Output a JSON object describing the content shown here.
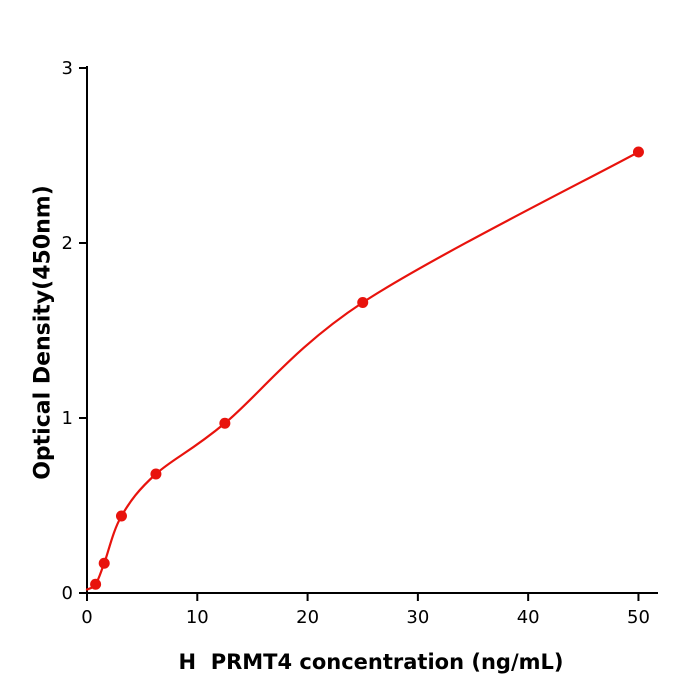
{
  "chart_data": {
    "type": "scatter",
    "title": "",
    "xlabel": "H  PRMT4 concentration (ng/mL)",
    "ylabel": "Optical Density(450nm)",
    "x": [
      0.78,
      1.56,
      3.125,
      6.25,
      12.5,
      25,
      50
    ],
    "y": [
      0.05,
      0.17,
      0.44,
      0.68,
      0.97,
      1.66,
      2.52
    ],
    "curve_start_x": 0,
    "curve_start_y": 0.02,
    "xlim": [
      0,
      51.5
    ],
    "ylim": [
      0,
      3
    ],
    "xticks": [
      0,
      10,
      20,
      30,
      40,
      50
    ],
    "yticks": [
      0,
      1,
      2,
      3
    ],
    "point_color": "#e8130d",
    "line_color": "#e8130d",
    "axis_color": "#000000",
    "grid": "off",
    "legend": "none",
    "marker_radius": 5.5
  }
}
